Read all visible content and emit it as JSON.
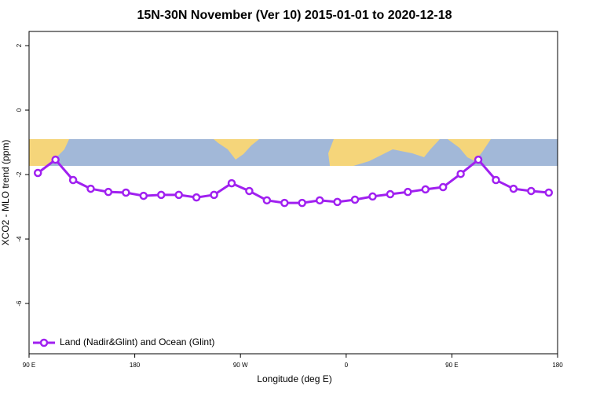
{
  "chart_data": {
    "type": "line",
    "title": "15N-30N November (Ver 10)   2015-01-01 to 2020-12-18",
    "x_label": "Longitude (deg E)",
    "y_label": "XCO2 - MLO trend (ppm)",
    "x": [
      97.5,
      112.5,
      127.5,
      142.5,
      157.5,
      172.5,
      187.5,
      202.5,
      217.5,
      232.5,
      247.5,
      262.5,
      277.5,
      292.5,
      307.5,
      322.5,
      337.5,
      352.5,
      367.5,
      382.5,
      397.5,
      412.5,
      427.5,
      442.5,
      457.5,
      472.5,
      487.5,
      502.5,
      517.5,
      532.5
    ],
    "series": [
      {
        "name": "Land (Nadir&Glint) and Ocean (Glint)",
        "color": "#a020f0",
        "values": [
          -1.95,
          -1.54,
          -2.17,
          -2.44,
          -2.54,
          -2.56,
          -2.66,
          -2.63,
          -2.63,
          -2.71,
          -2.63,
          -2.27,
          -2.51,
          -2.8,
          -2.88,
          -2.88,
          -2.8,
          -2.85,
          -2.78,
          -2.68,
          -2.61,
          -2.54,
          -2.46,
          -2.39,
          -1.98,
          -1.54,
          -2.17,
          -2.44,
          -2.51,
          -2.56
        ]
      }
    ],
    "xlim": [
      90,
      540
    ],
    "xticks": [
      {
        "value": 90,
        "label": "90 E"
      },
      {
        "value": 180,
        "label": "180"
      },
      {
        "value": 270,
        "label": "90 W"
      },
      {
        "value": 360,
        "label": "0"
      },
      {
        "value": 450,
        "label": "90 E"
      },
      {
        "value": 540,
        "label": "180"
      }
    ],
    "ylim": [
      -7.56,
      2.44
    ],
    "yticks": [
      2,
      0,
      -2,
      -4,
      -6
    ],
    "legend": "bottom-left"
  }
}
